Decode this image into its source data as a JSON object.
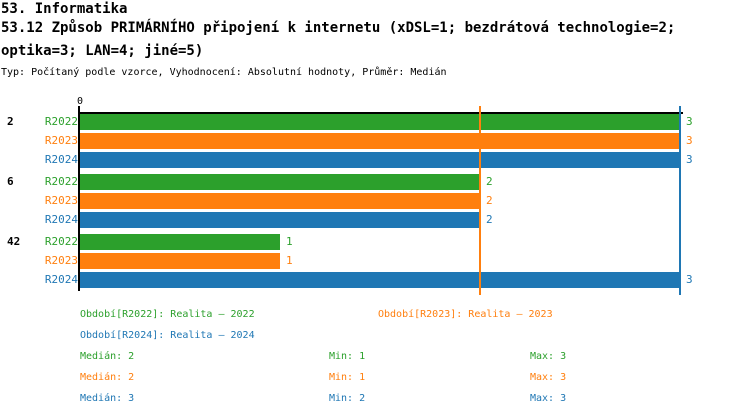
{
  "header": {
    "line1": "53. Informatika",
    "line2": "53.12 Způsob PRIMÁRNÍHO připojení k internetu (xDSL=1; bezdrátová technologie=2;",
    "line3": "optika=3; LAN=4; jiné=5)",
    "meta": "Typ: Počítaný podle vzorce, Vyhodnocení: Absolutní hodnoty, Průměr: Medián"
  },
  "chart_data": {
    "type": "bar",
    "orientation": "horizontal",
    "title": "53.12 Způsob PRIMÁRNÍHO připojení k internetu",
    "xlim": [
      0,
      3
    ],
    "origin_tick_label": "0",
    "grid": false,
    "categories": [
      "2",
      "6",
      "42"
    ],
    "series": [
      {
        "name": "R2022",
        "color": "#2ca02c",
        "values": [
          3,
          2,
          1
        ]
      },
      {
        "name": "R2023",
        "color": "#ff7f0e",
        "values": [
          3,
          2,
          1
        ]
      },
      {
        "name": "R2024",
        "color": "#1f77b4",
        "values": [
          3,
          2,
          3
        ]
      }
    ],
    "median_lines": [
      {
        "series": "R2022",
        "value": 2,
        "color": "#2ca02c"
      },
      {
        "series": "R2023",
        "value": 2,
        "color": "#ff7f0e"
      },
      {
        "series": "R2024",
        "value": 3,
        "color": "#1f77b4"
      }
    ]
  },
  "legend": {
    "items": [
      {
        "text": "Období[R2022]: Realita – 2022",
        "color": "#2ca02c"
      },
      {
        "text": "Období[R2023]: Realita – 2023",
        "color": "#ff7f0e"
      },
      {
        "text": "Období[R2024]: Realita – 2024",
        "color": "#1f77b4"
      }
    ]
  },
  "stats": {
    "rows": [
      {
        "median": "Medián: 2",
        "min": "Min: 1",
        "max": "Max: 3",
        "color": "#2ca02c"
      },
      {
        "median": "Medián: 2",
        "min": "Min: 1",
        "max": "Max: 3",
        "color": "#ff7f0e"
      },
      {
        "median": "Medián: 3",
        "min": "Min: 2",
        "max": "Max: 3",
        "color": "#1f77b4"
      }
    ]
  }
}
